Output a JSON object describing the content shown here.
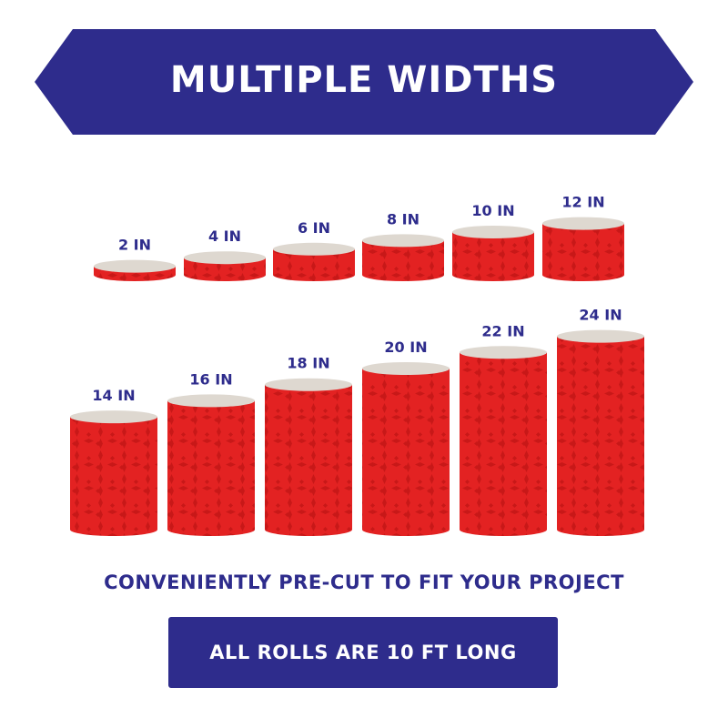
{
  "colors": {
    "brand_navy": "#2e2c8c",
    "roll_red": "#e32222",
    "roll_pattern": "#c81818",
    "roll_core": "#ded8d0",
    "background": "#ffffff"
  },
  "banner": {
    "title": "MULTIPLE WIDTHS"
  },
  "rolls": [
    {
      "label": "2 IN",
      "width_in": 2
    },
    {
      "label": "4 IN",
      "width_in": 4
    },
    {
      "label": "6 IN",
      "width_in": 6
    },
    {
      "label": "8 IN",
      "width_in": 8
    },
    {
      "label": "10 IN",
      "width_in": 10
    },
    {
      "label": "12 IN",
      "width_in": 12
    },
    {
      "label": "14 IN",
      "width_in": 14
    },
    {
      "label": "16 IN",
      "width_in": 16
    },
    {
      "label": "18 IN",
      "width_in": 18
    },
    {
      "label": "20 IN",
      "width_in": 20
    },
    {
      "label": "22 IN",
      "width_in": 22
    },
    {
      "label": "24 IN",
      "width_in": 24
    }
  ],
  "tagline": "CONVENIENTLY PRE-CUT TO FIT YOUR PROJECT",
  "footer": {
    "text": "ALL ROLLS ARE 10 FT LONG"
  }
}
